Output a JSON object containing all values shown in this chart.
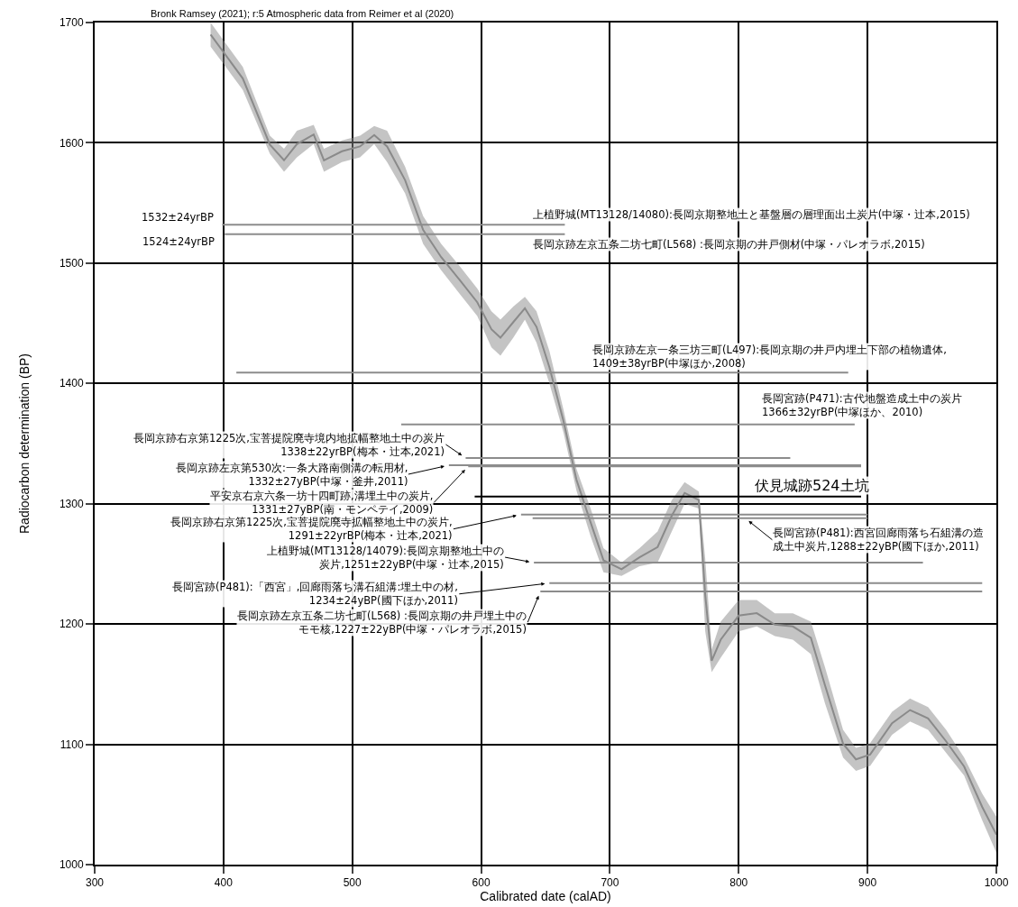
{
  "chart_data": {
    "type": "line",
    "xlabel": "Calibrated date (calAD)",
    "ylabel": "Radiocarbon determination (BP)",
    "xlim": [
      300,
      1000
    ],
    "xticks": [
      300,
      400,
      500,
      600,
      700,
      800,
      900,
      1000
    ],
    "ylim": [
      1000,
      1700
    ],
    "yticks": [
      1000,
      1100,
      1200,
      1300,
      1400,
      1500,
      1600,
      1700
    ],
    "grid": true,
    "marker": "none",
    "line_style": "solid",
    "series": [
      {
        "type": "line",
        "color": "#8a8a8a",
        "values": [
          1690,
          1653.5,
          1598.5,
          1585.5,
          1599,
          1607,
          1585.5,
          1593,
          1597,
          1606.5,
          1597,
          1569,
          1527.5,
          1505,
          1486.5,
          1467.5,
          1445,
          1438,
          1451,
          1462.5,
          1447,
          1413.5,
          1368.5,
          1320,
          1284.5,
          1253,
          1245.5,
          1255.5,
          1264,
          1290,
          1309,
          1303,
          1224,
          1169.5,
          1187,
          1207,
          1209,
          1199.5,
          1198,
          1188.5,
          1149,
          1100.5,
          1087.5,
          1091.5,
          1117.5,
          1128.5,
          1121.5,
          1102.5,
          1081.5,
          1048,
          1025
        ],
        "x": [
          390,
          415,
          436,
          447,
          457,
          470,
          478,
          492,
          506,
          517,
          527,
          541,
          555,
          569,
          583,
          597,
          608,
          615,
          625,
          634,
          643,
          653,
          664,
          674,
          685,
          695,
          709,
          723,
          737,
          748,
          758,
          769,
          774,
          779,
          786,
          800,
          814,
          828,
          842,
          856,
          867,
          881,
          891,
          902,
          919,
          933,
          947,
          961,
          975,
          989,
          1000
        ],
        "upper": [
          1700,
          1663,
          1606,
          1595,
          1610,
          1615,
          1595,
          1602,
          1606,
          1614,
          1610,
          1580,
          1539,
          1516,
          1498,
          1479,
          1460,
          1453,
          1464,
          1472,
          1460,
          1427,
          1378,
          1329,
          1296,
          1263,
          1251,
          1263,
          1277,
          1303,
          1318,
          1310,
          1254,
          1179,
          1202,
          1220,
          1220,
          1209,
          1209,
          1202,
          1164,
          1112,
          1097,
          1101,
          1127,
          1138,
          1131,
          1112,
          1089,
          1059,
          1040
        ],
        "lower": [
          1680,
          1644,
          1591,
          1576,
          1588,
          1599,
          1576,
          1584,
          1588,
          1599,
          1584,
          1558,
          1516,
          1494,
          1475,
          1456,
          1430,
          1423,
          1438,
          1453,
          1434,
          1400,
          1359,
          1311,
          1273,
          1243,
          1240,
          1248,
          1251,
          1277,
          1300,
          1296,
          1194,
          1160,
          1172,
          1194,
          1198,
          1190,
          1187,
          1175,
          1134,
          1089,
          1078,
          1082,
          1108,
          1119,
          1112,
          1093,
          1074,
          1037,
          1010
        ]
      },
      {
        "color": "#8c8c8c",
        "x": [
          399,
          665
        ],
        "values": [
          1532,
          1532
        ]
      },
      {
        "color": "#8c8c8c",
        "x": [
          401,
          665
        ],
        "values": [
          1524,
          1524
        ]
      },
      {
        "color": "#8c8c8c",
        "x": [
          410,
          885
        ],
        "values": [
          1409,
          1409
        ]
      },
      {
        "color": "#8c8c8c",
        "x": [
          538,
          890
        ],
        "values": [
          1366,
          1366
        ]
      },
      {
        "color": "#8c8c8c",
        "x": [
          588,
          840
        ],
        "values": [
          1338,
          1338
        ]
      },
      {
        "color": "#8c8c8c",
        "x": [
          575,
          895
        ],
        "values": [
          1332,
          1332
        ]
      },
      {
        "color": "#8c8c8c",
        "x": [
          590,
          895
        ],
        "values": [
          1331,
          1331
        ]
      },
      {
        "color": "#000000",
        "x": [
          595,
          895
        ],
        "values": [
          1306,
          1306
        ]
      },
      {
        "color": "#8c8c8c",
        "x": [
          631,
          900
        ],
        "values": [
          1291,
          1291
        ]
      },
      {
        "color": "#8c8c8c",
        "x": [
          640,
          900
        ],
        "values": [
          1288,
          1288
        ]
      },
      {
        "color": "#8c8c8c",
        "x": [
          641,
          943
        ],
        "values": [
          1251,
          1251
        ]
      },
      {
        "color": "#8c8c8c",
        "x": [
          653,
          989
        ],
        "values": [
          1234,
          1234
        ]
      },
      {
        "color": "#8c8c8c",
        "x": [
          646,
          989
        ],
        "values": [
          1227,
          1227
        ]
      }
    ],
    "annotations": [
      "Bronk Ramsey (2021); r:5 Atmospheric data from Reimer et al (2020)",
      {
        "text": "1532±24yrBP",
        "x": 399,
        "y": 1532
      },
      {
        "text": "1524±24yrBP",
        "x": 401,
        "y": 1524
      },
      {
        "text": "上植野城(MT13128/14080):長岡京期整地土と基盤層の層理面出土炭片(中塚・辻本,2015)",
        "x": 665,
        "y": 1532
      },
      {
        "text": "長岡京跡左京五条二坊七町(L568) :長岡京期の井戸側材(中塚・パレオラボ,2015)",
        "x": 665,
        "y": 1524
      },
      {
        "text": "長岡京跡左京一条三坊三町(L497):長岡京期の井戸内埋土下部の植物遺体,\n1409±38yrBP(中塚ほか,2008)",
        "x": 686,
        "y": 1409
      },
      {
        "text": "長岡宮跡(P471):古代地盤造成土中の炭片\n1366±32yrBP(中塚ほか、2010)",
        "x": 817,
        "y": 1366
      },
      {
        "text": "長岡京跡右京第1225次,宝菩提院廃寺境内地拡幅整地土中の炭片\n1338±22yrBP(梅本・辻本,2021)",
        "x": 588,
        "y": 1338
      },
      {
        "text": "長岡京跡左京第530次:一条大路南側溝の転用材,\n1332±27yBP(中塚・釜井,2011)",
        "x": 575,
        "y": 1332
      },
      {
        "text": "平安京右京六条一坊十四町跡,溝埋土中の炭片,\n1331±27yBP(南・モンペテイ,2009)",
        "x": 590,
        "y": 1331
      },
      {
        "text": "伏見城跡524土坑",
        "x": 812,
        "y": 1306
      },
      {
        "text": "長岡京跡右京第1225次,宝菩提院廃寺拡幅整地土中の炭片,\n1291±22yrBP(梅本・辻本,2021)",
        "x": 631,
        "y": 1291
      },
      {
        "text": "長岡宮跡(P481):西宮回廊雨落ち石組溝の造成土中炭片,1288±22yBP(國下ほか,2011)",
        "x": 805,
        "y": 1288
      },
      {
        "text": "上植野城(MT13128/14079):長岡京期整地土中の炭片,1251±22yBP(中塚・辻本,2015)",
        "x": 641,
        "y": 1251
      },
      {
        "text": "長岡宮跡(P481):「西宮」,回廊雨落ち溝石組溝:埋土中の材,\n1234±24yBP(國下ほか,2011)",
        "x": 653,
        "y": 1234
      },
      {
        "text": "長岡京跡左京五条二坊七町(L568) :長岡京期の井戸埋土中のモモ核,1227±22yBP(中塚・パレオラボ,2015)",
        "x": 646,
        "y": 1227
      }
    ]
  }
}
